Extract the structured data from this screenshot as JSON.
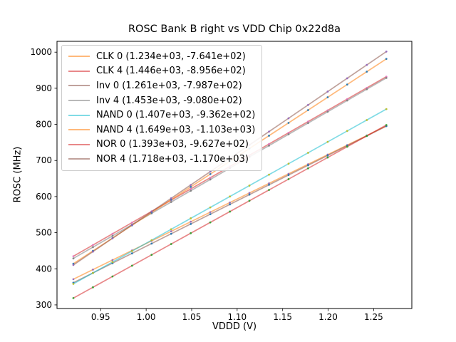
{
  "figure": {
    "title": "ROSC Bank B right vs VDD Chip 0x22d8a",
    "xlabel": "VDDD (V)",
    "ylabel": "ROSC (MHz)"
  },
  "chart_data": {
    "type": "line",
    "title": "ROSC Bank B right vs VDD Chip 0x22d8a",
    "xlabel": "VDDD (V)",
    "ylabel": "ROSC (MHz)",
    "xlim": [
      0.902,
      1.292
    ],
    "ylim": [
      290,
      1030
    ],
    "xticks": [
      0.95,
      1.0,
      1.05,
      1.1,
      1.15,
      1.2,
      1.25
    ],
    "xtick_labels": [
      "0.95",
      "1.00",
      "1.05",
      "1.10",
      "1.15",
      "1.20",
      "1.25"
    ],
    "yticks": [
      300,
      400,
      500,
      600,
      700,
      800,
      900,
      1000
    ],
    "ytick_labels": [
      "300",
      "400",
      "500",
      "600",
      "700",
      "800",
      "900",
      "1000"
    ],
    "grid": false,
    "legend_position": "upper left",
    "x_data": {
      "start": 0.92,
      "end": 1.264,
      "points": 17
    },
    "line_alpha": 0.55,
    "series": [
      {
        "name": "CLK 0",
        "label": "CLK 0 (1.234e+03, -7.641e+02)",
        "slope": 1234,
        "intercept": -764.1,
        "line_color": "#ff7f0e",
        "marker_color": "#9467bd"
      },
      {
        "name": "CLK 4",
        "label": "CLK 4 (1.446e+03, -8.956e+02)",
        "slope": 1446,
        "intercept": -895.6,
        "line_color": "#d62728",
        "marker_color": "#e377c2"
      },
      {
        "name": "Inv 0",
        "label": "Inv 0 (1.261e+03, -7.987e+02)",
        "slope": 1261,
        "intercept": -798.7,
        "line_color": "#8c564b",
        "marker_color": "#1f77b4"
      },
      {
        "name": "Inv 4",
        "label": "Inv 4 (1.453e+03, -9.080e+02)",
        "slope": 1453,
        "intercept": -908.0,
        "line_color": "#7f7f7f",
        "marker_color": "#7f7f7f"
      },
      {
        "name": "NAND 0",
        "label": "NAND 0 (1.407e+03, -9.362e+02)",
        "slope": 1407,
        "intercept": -936.2,
        "line_color": "#17becf",
        "marker_color": "#bcbd22"
      },
      {
        "name": "NAND 4",
        "label": "NAND 4 (1.649e+03, -1.103e+03)",
        "slope": 1649,
        "intercept": -1103.0,
        "line_color": "#ff7f0e",
        "marker_color": "#1f77b4"
      },
      {
        "name": "NOR 0",
        "label": "NOR 0 (1.393e+03, -9.627e+02)",
        "slope": 1393,
        "intercept": -962.7,
        "line_color": "#d62728",
        "marker_color": "#2ca02c"
      },
      {
        "name": "NOR 4",
        "label": "NOR 4 (1.718e+03, -1.170e+03)",
        "slope": 1718,
        "intercept": -1170.0,
        "line_color": "#8c564b",
        "marker_color": "#9467bd"
      }
    ]
  }
}
